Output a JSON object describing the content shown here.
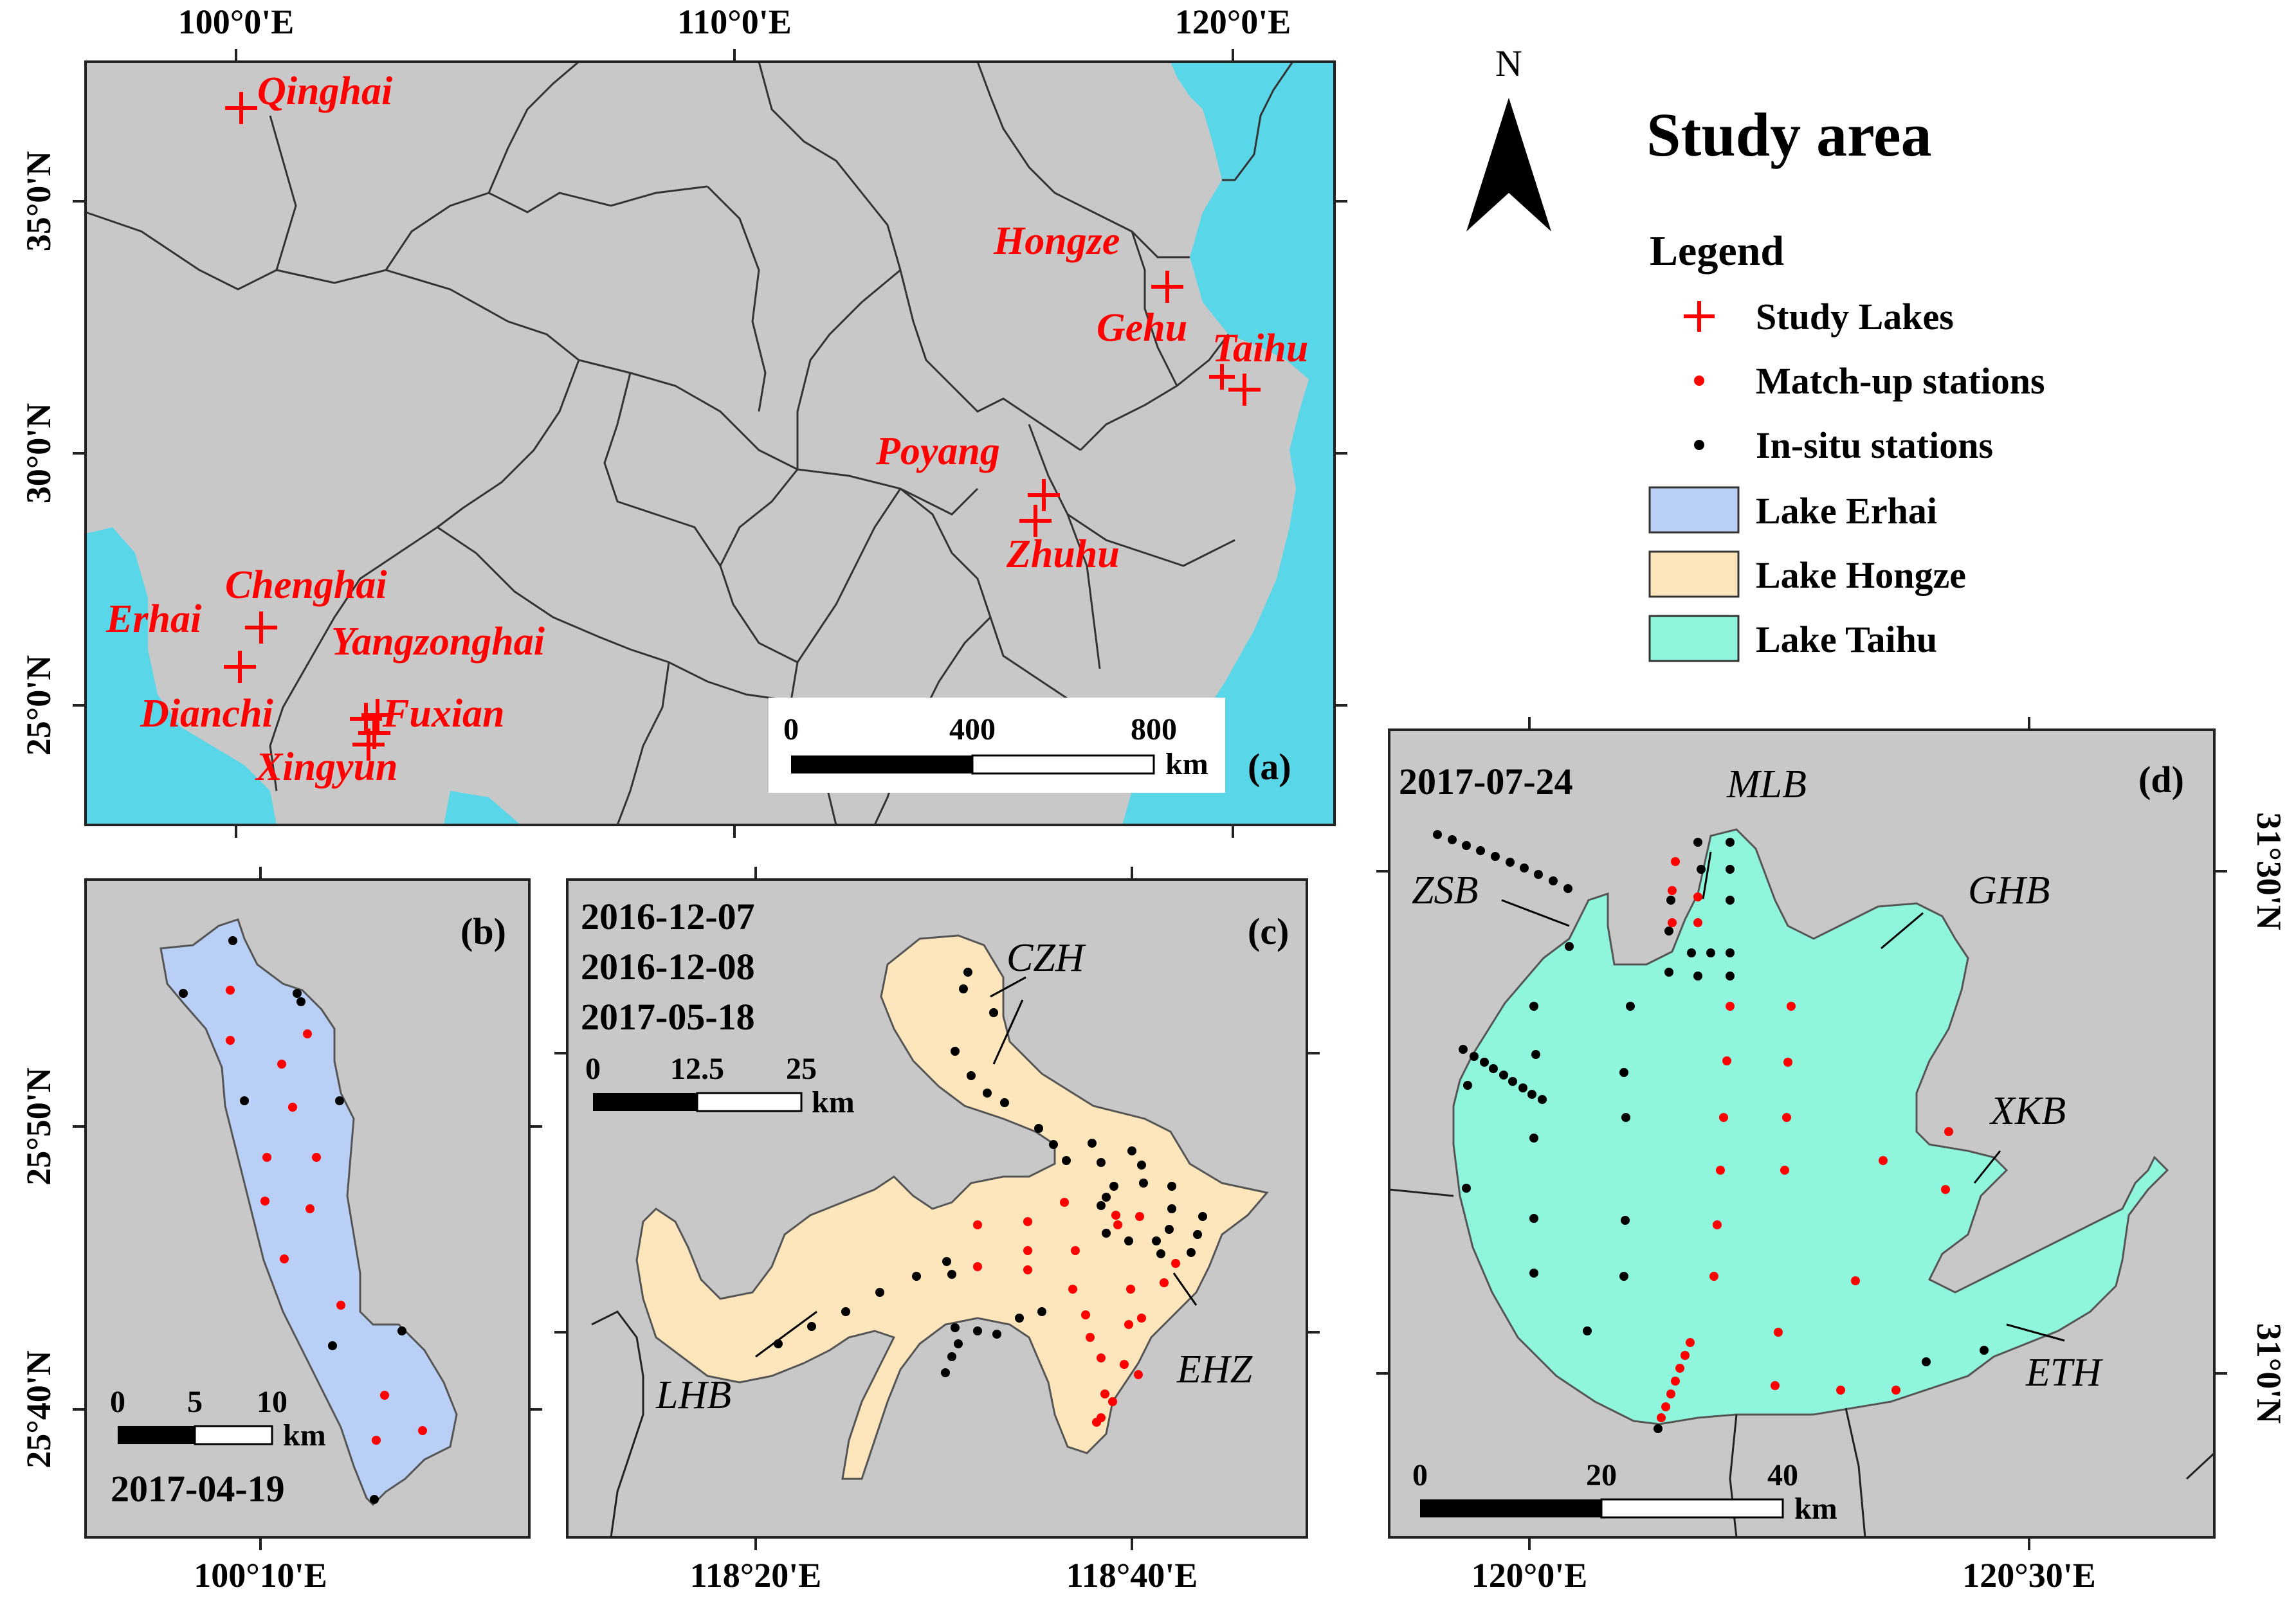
{
  "legend": {
    "title": "Study area",
    "heading": "Legend",
    "study_lakes": "Study Lakes",
    "matchup": "Match-up stations",
    "insitu": "In-situ stations",
    "erhai": "Lake Erhai",
    "hongze": "Lake Hongze",
    "taihu": "Lake Taihu",
    "north": "N"
  },
  "colors": {
    "land": "#c8c8c8",
    "sea": "#5ad6e9",
    "erhai": "#b9cff5",
    "hongze": "#fde6bc",
    "taihu": "#8ff5dc",
    "marker": "#ff0000",
    "insitu": "#000000"
  },
  "panel_a": {
    "label": "(a)",
    "x_ticks": [
      "100°0'E",
      "110°0'E",
      "120°0'E"
    ],
    "y_ticks": [
      "35°0'N",
      "30°0'N",
      "25°0'N"
    ],
    "scale": {
      "v0": "0",
      "v1": "400",
      "v2": "800",
      "unit": "km"
    },
    "lakes": [
      "Qinghai",
      "Hongze",
      "Gehu",
      "Taihu",
      "Poyang",
      "Zhuhu",
      "Chenghai",
      "Erhai",
      "Yangzonghai",
      "Dianchi",
      "Fuxian",
      "Xingyun"
    ]
  },
  "panel_b": {
    "label": "(b)",
    "date": "2017-04-19",
    "x_tick": "100°10'E",
    "y_ticks": [
      "25°50'N",
      "25°40'N"
    ],
    "scale": {
      "v0": "0",
      "v1": "5",
      "v2": "10",
      "unit": "km"
    }
  },
  "panel_c": {
    "label": "(c)",
    "dates": [
      "2016-12-07",
      "2016-12-08",
      "2017-05-18"
    ],
    "x_ticks": [
      "118°20'E",
      "118°40'E"
    ],
    "scale": {
      "v0": "0",
      "v1": "12.5",
      "v2": "25",
      "unit": "km"
    },
    "regions": [
      "CZH",
      "LHB",
      "EHZ"
    ]
  },
  "panel_d": {
    "label": "(d)",
    "date": "2017-07-24",
    "x_ticks": [
      "120°0'E",
      "120°30'E"
    ],
    "y_ticks": [
      "31°30'N",
      "31°0'N"
    ],
    "scale": {
      "v0": "0",
      "v1": "20",
      "v2": "40",
      "unit": "km"
    },
    "regions": [
      "MLB",
      "ZSB",
      "GHB",
      "XKB",
      "ETH"
    ]
  }
}
